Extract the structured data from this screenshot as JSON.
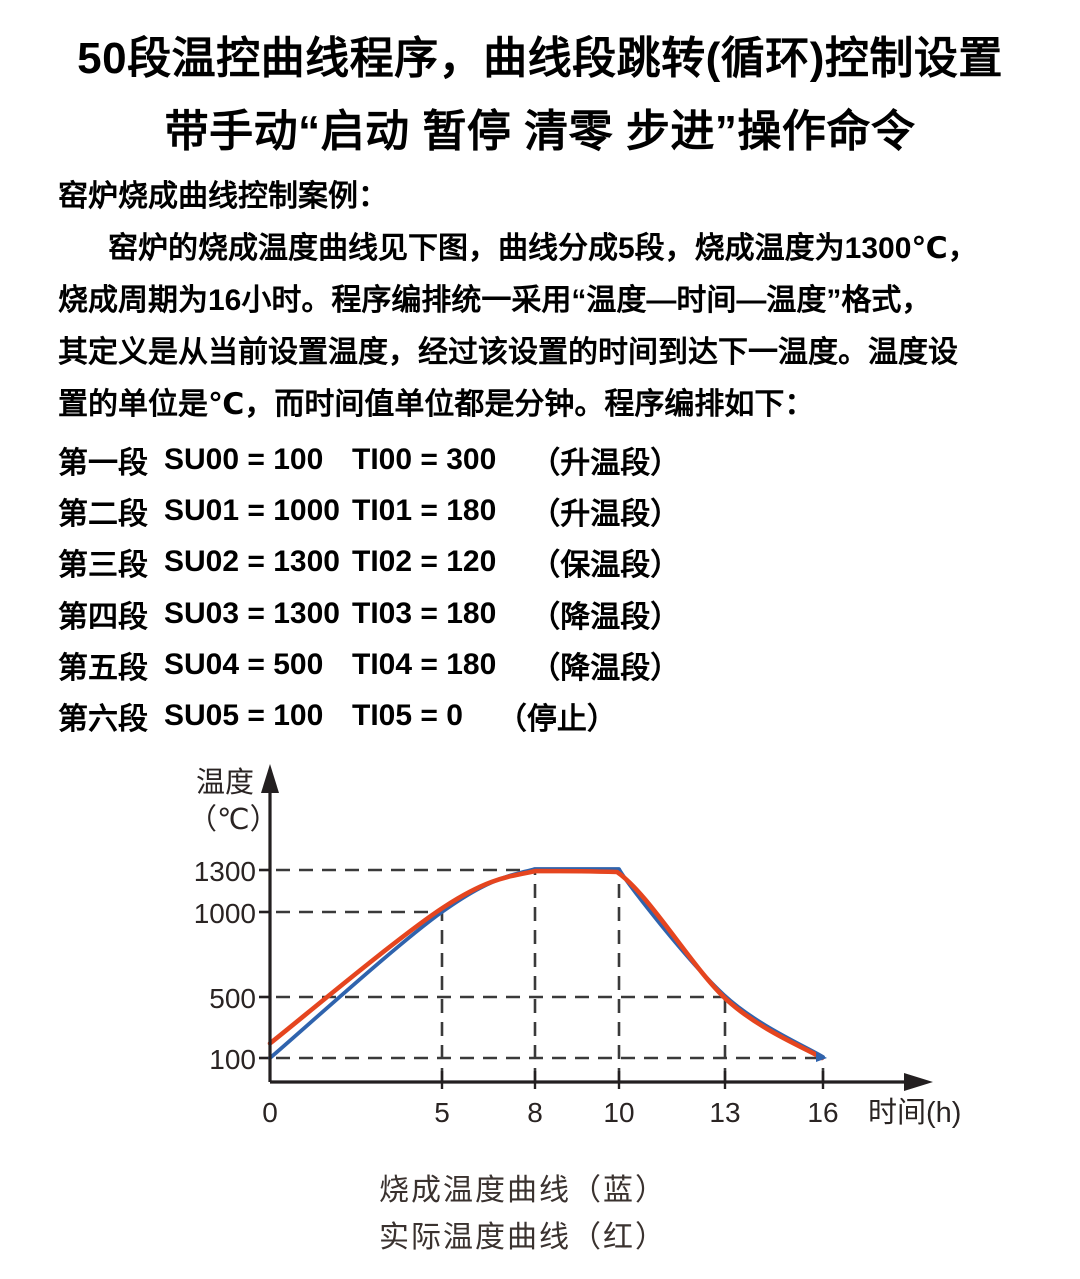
{
  "title": {
    "line1": "50段温控曲线程序，曲线段跳转(循环)控制设置",
    "line2": "带手动“启动 暂停 清零 步进”操作命令"
  },
  "intro": {
    "heading": "窑炉烧成曲线控制案例：",
    "lines": [
      "窑炉的烧成温度曲线见下图，曲线分成5段，烧成温度为1300℃，",
      "烧成周期为16小时。程序编排统一采用“温度—时间—温度”格式，",
      "其定义是从当前设置温度，经过该设置的时间到达下一温度。温度设",
      "置的单位是℃，而时间值单位都是分钟。程序编排如下："
    ]
  },
  "program": {
    "rows": [
      {
        "seg": "第一段",
        "su": "SU00 = 100",
        "ti": "TI00 = 300",
        "phase": "（升温段）"
      },
      {
        "seg": "第二段",
        "su": "SU01 = 1000",
        "ti": "TI01 = 180",
        "phase": "（升温段）"
      },
      {
        "seg": "第三段",
        "su": "SU02 = 1300",
        "ti": "TI02 = 120",
        "phase": "（保温段）"
      },
      {
        "seg": "第四段",
        "su": "SU03 = 1300",
        "ti": "TI03 = 180",
        "phase": "（降温段）"
      },
      {
        "seg": "第五段",
        "su": "SU04 = 500",
        "ti": "TI04 = 180",
        "phase": "（降温段）"
      },
      {
        "seg": "第六段",
        "su": "SU05 = 100",
        "ti": "TI05 = 0",
        "phase": "（停止）"
      }
    ]
  },
  "chart_data": {
    "type": "line",
    "ylabel_line1": "温度",
    "ylabel_line2": "（℃）",
    "xlabel": "时间(h)",
    "x_ticks": [
      "0",
      "5",
      "8",
      "10",
      "13",
      "16"
    ],
    "y_ticks": [
      "1300",
      "1000",
      "500",
      "100"
    ],
    "xlim": [
      0,
      19
    ],
    "ylim": [
      0,
      1600
    ],
    "grid": "dashed reference guides at tick crossings",
    "legend_position": "below chart, centered",
    "guides": [
      [
        5,
        1000
      ],
      [
        8,
        1300
      ],
      [
        10,
        1300
      ],
      [
        13,
        500
      ],
      [
        16,
        100
      ]
    ],
    "series": [
      {
        "name": "烧成温度曲线（蓝）",
        "color": "#2f63ad",
        "x": [
          0,
          5,
          8,
          10,
          13,
          16
        ],
        "values": [
          100,
          1000,
          1300,
          1300,
          500,
          100
        ]
      },
      {
        "name": "实际温度曲线（红）",
        "color": "#e5451f",
        "x": [
          0,
          5,
          8,
          10,
          13,
          16
        ],
        "values": [
          150,
          1000,
          1300,
          1300,
          500,
          100
        ]
      }
    ]
  },
  "legend": {
    "blue": "烧成温度曲线（蓝）",
    "red": "实际温度曲线（红）"
  },
  "colors": {
    "blue_curve": "#2f63ad",
    "red_curve": "#e5451f",
    "axis": "#231f20",
    "dash": "#3a3a3a",
    "text": "#000000",
    "chart_text": "#2a2423",
    "legend_text": "#3a322f",
    "background": "#ffffff"
  }
}
